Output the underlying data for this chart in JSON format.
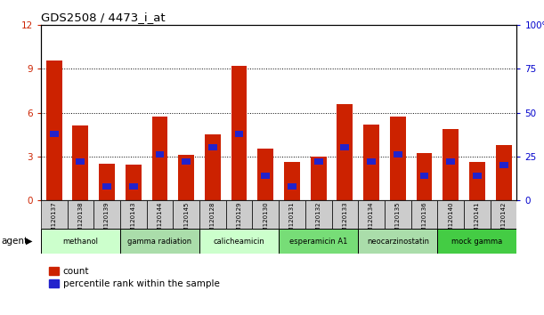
{
  "title": "GDS2508 / 4473_i_at",
  "samples": [
    "GSM120137",
    "GSM120138",
    "GSM120139",
    "GSM120143",
    "GSM120144",
    "GSM120145",
    "GSM120128",
    "GSM120129",
    "GSM120130",
    "GSM120131",
    "GSM120132",
    "GSM120133",
    "GSM120134",
    "GSM120135",
    "GSM120136",
    "GSM120140",
    "GSM120141",
    "GSM120142"
  ],
  "count_values": [
    9.6,
    5.1,
    2.5,
    2.4,
    5.7,
    3.1,
    4.5,
    9.2,
    3.5,
    2.6,
    3.0,
    6.6,
    5.2,
    5.7,
    3.2,
    4.9,
    2.6,
    3.8
  ],
  "percentile_values": [
    38,
    22,
    8,
    8,
    26,
    22,
    30,
    38,
    14,
    8,
    22,
    30,
    22,
    26,
    14,
    22,
    14,
    20
  ],
  "groups": [
    {
      "label": "methanol",
      "indices": [
        0,
        1,
        2
      ],
      "color": "#ccffcc"
    },
    {
      "label": "gamma radiation",
      "indices": [
        3,
        4,
        5
      ],
      "color": "#aaddaa"
    },
    {
      "label": "calicheamicin",
      "indices": [
        6,
        7,
        8
      ],
      "color": "#ccffcc"
    },
    {
      "label": "esperamicin A1",
      "indices": [
        9,
        10,
        11
      ],
      "color": "#77dd77"
    },
    {
      "label": "neocarzinostatin",
      "indices": [
        12,
        13,
        14
      ],
      "color": "#aaddaa"
    },
    {
      "label": "mock gamma",
      "indices": [
        15,
        16,
        17
      ],
      "color": "#44cc44"
    }
  ],
  "ylim_left": [
    0,
    12
  ],
  "ylim_right": [
    0,
    100
  ],
  "yticks_left": [
    0,
    3,
    6,
    9,
    12
  ],
  "yticks_right": [
    0,
    25,
    50,
    75,
    100
  ],
  "bar_color": "#cc2200",
  "dot_color": "#2222cc",
  "legend_count": "count",
  "legend_percentile": "percentile rank within the sample",
  "left_tick_color": "#cc2200",
  "right_tick_color": "#0000cc"
}
